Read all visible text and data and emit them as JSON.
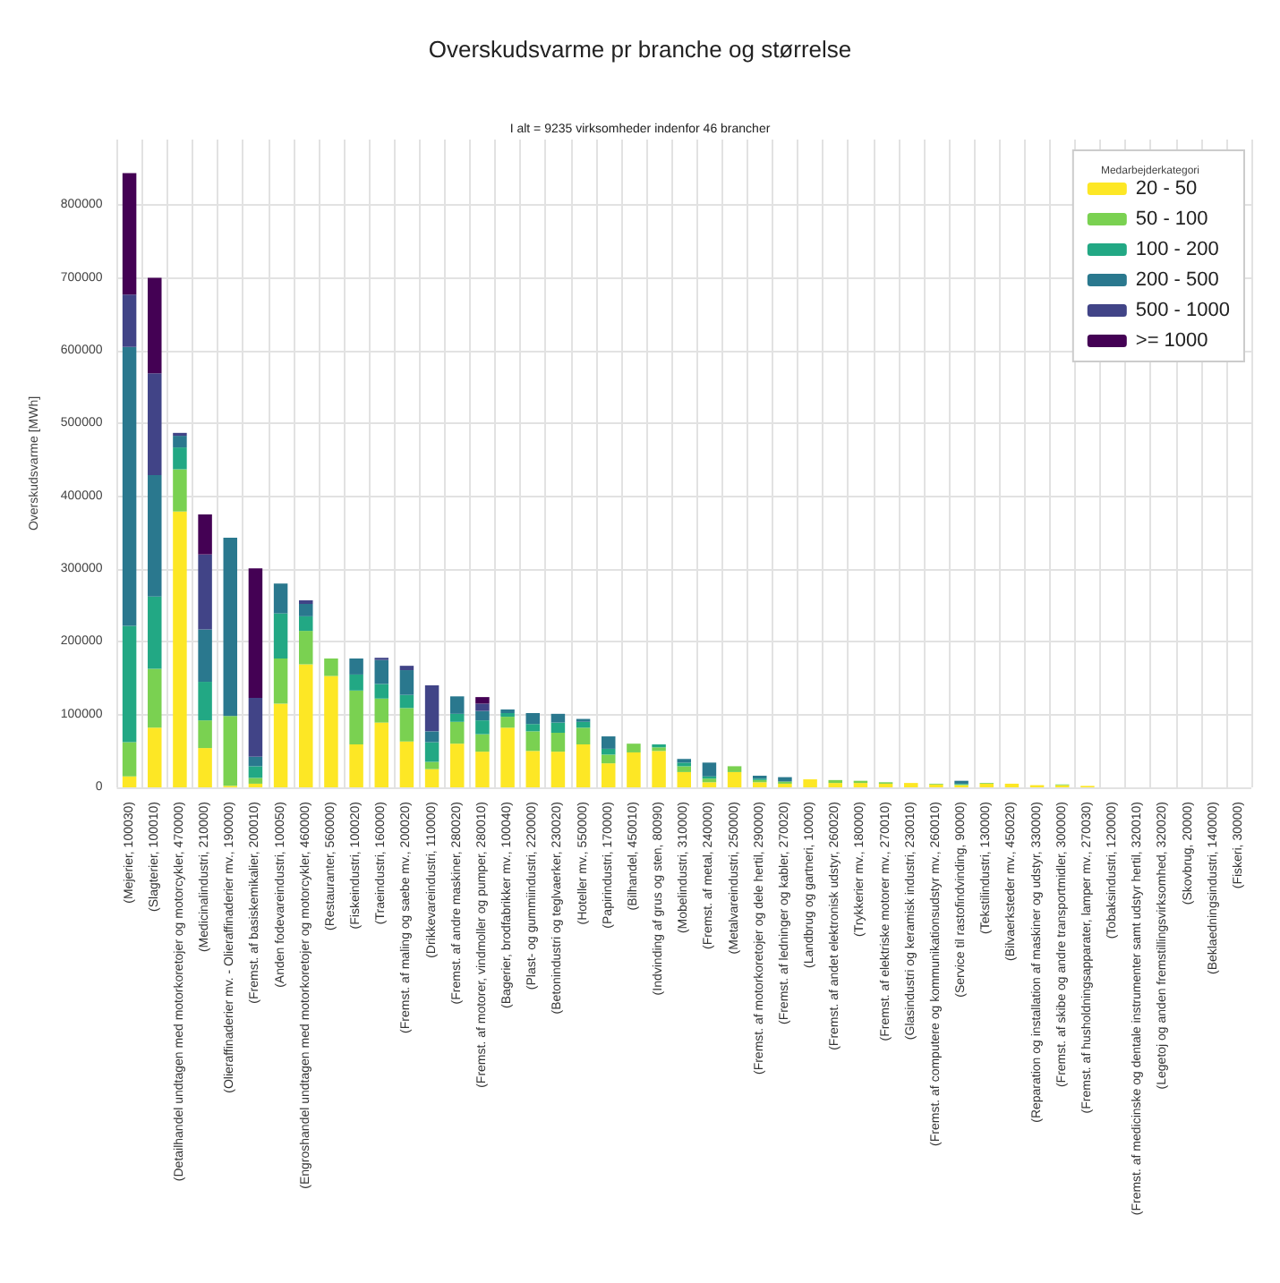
{
  "chart_data": {
    "type": "bar",
    "title": "Overskudsvarme pr branche og størrelse",
    "subtitle": "I alt = 9235 virksomheder indenfor 46 brancher",
    "ylabel": "Overskudsvarme [MWh]",
    "legend_title": "Medarbejderkategori",
    "stacked": true,
    "grid": true,
    "legend": "top right",
    "ylim": [
      0,
      890000
    ],
    "yticks": [
      0,
      100000,
      200000,
      300000,
      400000,
      500000,
      600000,
      700000,
      800000
    ],
    "categories": [
      "(Mejerier, 100030)",
      "(Slagterier, 100010)",
      "(Detailhandel undtagen med motorkoretojer og motorcykler, 470000)",
      "(Medicinalindustri, 210000)",
      "(Olieraffinaderier mv. - Olieraffinaderier mv., 190000)",
      "(Fremst. af basiskemikalier, 200010)",
      "(Anden fodevareindustri, 100050)",
      "(Engroshandel undtagen med motorkoretojer og motorcykler, 460000)",
      "(Restauranter, 560000)",
      "(Fiskeindustri, 100020)",
      "(Traeindustri, 160000)",
      "(Fremst. af maling og saebe mv., 200020)",
      "(Drikkevareindustri, 110000)",
      "(Fremst. af andre maskiner, 280020)",
      "(Fremst. af motorer, vindmoller og pumper, 280010)",
      "(Bagerier, brodfabrikker mv., 100040)",
      "(Plast- og gummiindustri, 220000)",
      "(Betonindustri og teglvaerker, 230020)",
      "(Hoteller mv., 550000)",
      "(Papirindustri, 170000)",
      "(Bilhandel, 450010)",
      "(Indvinding af grus og sten, 80090)",
      "(Mobelindustri, 310000)",
      "(Fremst. af metal, 240000)",
      "(Metalvareindustri, 250000)",
      "(Fremst. af motorkoretojer og dele hertil, 290000)",
      "(Fremst. af ledninger og kabler, 270020)",
      "(Landbrug og gartneri, 10000)",
      "(Fremst. af andet elektronisk udstyr, 260020)",
      "(Trykkerier mv., 180000)",
      "(Fremst. af elektriske motorer mv., 270010)",
      "(Glasindustri og keramisk industri, 230010)",
      "(Fremst. af computere og kommunikationsudstyr mv., 260010)",
      "(Service til rastofindvinding, 90000)",
      "(Tekstilindustri, 130000)",
      "(Bilvaerksteder mv., 450020)",
      "(Reparation og installation af maskiner og udstyr, 330000)",
      "(Fremst. af skibe og andre transportmidler, 300000)",
      "(Fremst. af husholdningsapparater, lamper mv., 270030)",
      "(Tobaksindustri, 120000)",
      "(Fremst. af medicinske og dentale instrumenter samt udstyr hertil, 320010)",
      "(Legetoj og anden fremstillingsvirksomhed, 320020)",
      "(Skovbrug, 20000)",
      "(Beklaedningsindustri, 140000)",
      "(Fiskeri, 30000)"
    ],
    "series": [
      {
        "name": "20 - 50",
        "color": "#fde725",
        "values": [
          15000,
          82000,
          379000,
          54000,
          2000,
          5000,
          115000,
          169000,
          153000,
          59000,
          89000,
          63000,
          25000,
          60000,
          49000,
          82000,
          50000,
          49000,
          59000,
          33000,
          48000,
          50000,
          21000,
          7000,
          21000,
          7000,
          5000,
          11000,
          6000,
          6000,
          5000,
          6000,
          4000,
          3000,
          5000,
          5000,
          3000,
          3000,
          2000,
          0,
          0,
          0,
          0,
          0,
          0
        ]
      },
      {
        "name": "50 - 100",
        "color": "#7ad151",
        "values": [
          47000,
          81000,
          58000,
          38000,
          96000,
          8000,
          62000,
          46000,
          24000,
          74000,
          33000,
          46000,
          10000,
          30000,
          24000,
          15000,
          27000,
          26000,
          23000,
          12000,
          12000,
          5000,
          8000,
          5000,
          8000,
          3000,
          3000,
          0,
          4000,
          3000,
          2000,
          0,
          1000,
          1000,
          1000,
          0,
          0,
          1000,
          0,
          0,
          0,
          0,
          0,
          0,
          0
        ]
      },
      {
        "name": "100 - 200",
        "color": "#22a884",
        "values": [
          160000,
          99000,
          30000,
          53000,
          0,
          16000,
          62000,
          20000,
          0,
          22000,
          20000,
          18000,
          27000,
          11000,
          19000,
          5000,
          10000,
          14000,
          8000,
          8000,
          0,
          4000,
          5000,
          3000,
          0,
          2000,
          0,
          0,
          0,
          0,
          0,
          0,
          0,
          1000,
          0,
          0,
          0,
          0,
          0,
          0,
          0,
          0,
          0,
          0,
          0
        ]
      },
      {
        "name": "200 - 500",
        "color": "#2a788e",
        "values": [
          383000,
          167000,
          16000,
          72000,
          245000,
          13000,
          41000,
          17000,
          0,
          22000,
          33000,
          34000,
          15000,
          24000,
          13000,
          5000,
          15000,
          12000,
          4000,
          17000,
          0,
          0,
          5000,
          19000,
          0,
          4000,
          6000,
          0,
          0,
          0,
          0,
          0,
          0,
          4000,
          0,
          0,
          0,
          0,
          0,
          0,
          0,
          0,
          0,
          0,
          0
        ]
      },
      {
        "name": "500 - 1000",
        "color": "#414487",
        "values": [
          72000,
          140000,
          4000,
          103000,
          0,
          81000,
          0,
          5000,
          0,
          0,
          3000,
          6000,
          63000,
          0,
          10000,
          0,
          0,
          0,
          0,
          0,
          0,
          0,
          0,
          0,
          0,
          0,
          0,
          0,
          0,
          0,
          0,
          0,
          0,
          0,
          0,
          0,
          0,
          0,
          0,
          0,
          0,
          0,
          0,
          0,
          0
        ]
      },
      {
        "name": ">= 1000",
        "color": "#440154",
        "values": [
          167000,
          131000,
          0,
          55000,
          0,
          178000,
          0,
          0,
          0,
          0,
          0,
          0,
          0,
          0,
          9000,
          0,
          0,
          0,
          0,
          0,
          0,
          0,
          0,
          0,
          0,
          0,
          0,
          0,
          0,
          0,
          0,
          0,
          0,
          0,
          0,
          0,
          0,
          0,
          0,
          0,
          0,
          0,
          0,
          0,
          0
        ]
      }
    ]
  }
}
